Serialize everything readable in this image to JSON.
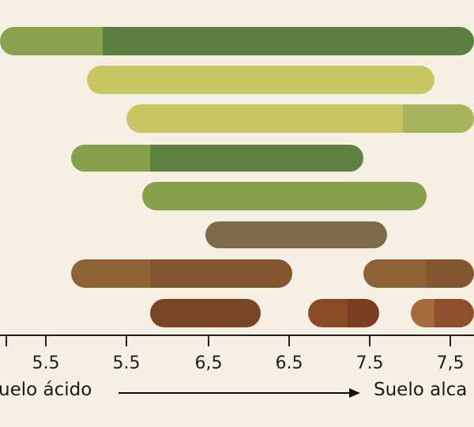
{
  "chart_data": {
    "type": "bar",
    "orientation": "horizontal-range",
    "tick_labels": [
      "5.5",
      "5.5",
      "6,5",
      "6.5",
      "7.5",
      "7,5"
    ],
    "left_label": "uelo ácido",
    "right_label": "Suelo alca",
    "grid": false,
    "rows": [
      {
        "segments": [
          {
            "start": 0.0,
            "end": 1.3,
            "color": "#8aa24e"
          },
          {
            "start": 1.3,
            "end": 6.0,
            "color": "#5b7f3f"
          }
        ]
      },
      {
        "segments": [
          {
            "start": 1.1,
            "end": 5.5,
            "color": "#c8c763"
          }
        ]
      },
      {
        "segments": [
          {
            "start": 1.6,
            "end": 5.1,
            "color": "#c8c763"
          },
          {
            "start": 5.1,
            "end": 6.0,
            "color": "#a9b55c"
          }
        ]
      },
      {
        "segments": [
          {
            "start": 0.9,
            "end": 1.9,
            "color": "#87a04b"
          },
          {
            "start": 1.9,
            "end": 4.6,
            "color": "#5e8040"
          }
        ]
      },
      {
        "segments": [
          {
            "start": 1.8,
            "end": 5.4,
            "color": "#87a04b"
          }
        ]
      },
      {
        "segments": [
          {
            "start": 2.6,
            "end": 4.9,
            "color": "#7e6a48"
          }
        ]
      },
      {
        "segments": [
          {
            "start": 0.9,
            "end": 1.9,
            "color": "#8f6236"
          },
          {
            "start": 1.9,
            "end": 3.7,
            "color": "#84562f"
          }
        ]
      },
      {
        "segments": [
          {
            "start": 4.6,
            "end": 5.4,
            "color": "#8f6236"
          },
          {
            "start": 5.4,
            "end": 6.0,
            "color": "#84562f"
          }
        ]
      },
      {
        "segments": [
          {
            "start": 1.9,
            "end": 3.3,
            "color": "#7b4423"
          }
        ]
      },
      {
        "segments": [
          {
            "start": 3.9,
            "end": 4.4,
            "color": "#8a4a26"
          },
          {
            "start": 4.4,
            "end": 4.8,
            "color": "#7a3d20"
          }
        ]
      },
      {
        "segments": [
          {
            "start": 5.2,
            "end": 5.5,
            "color": "#a46a3a"
          },
          {
            "start": 5.5,
            "end": 6.0,
            "color": "#8f4f2c"
          }
        ]
      }
    ]
  }
}
